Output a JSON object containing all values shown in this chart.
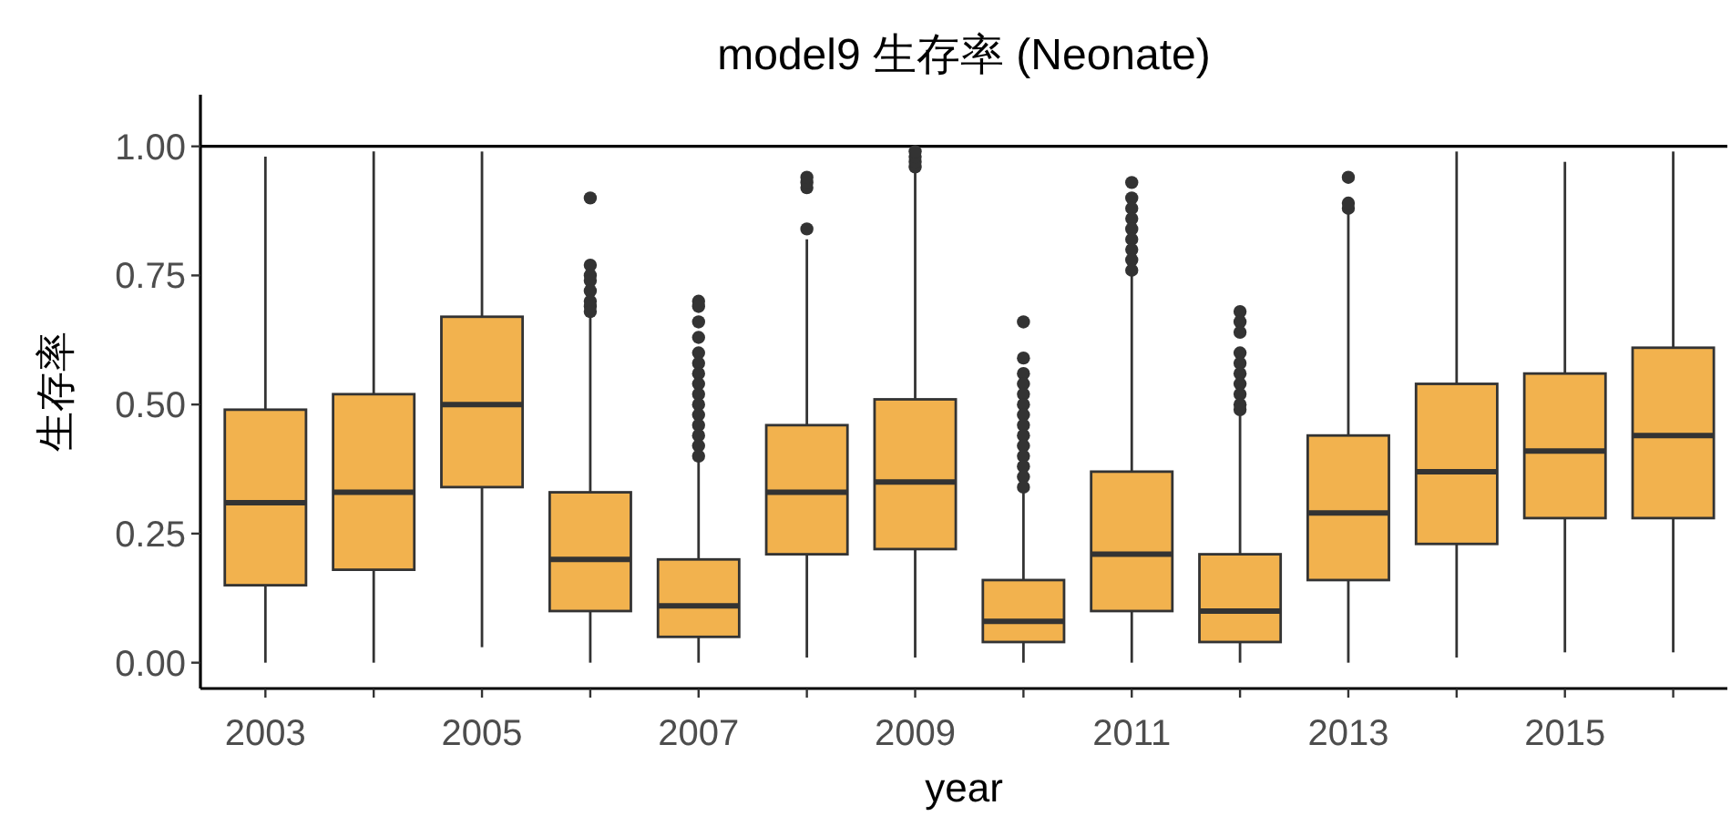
{
  "chart_data": {
    "type": "box",
    "title": "model9 生存率 (Neonate)",
    "xlabel": "year",
    "ylabel": "生存率",
    "categories": [
      "2003",
      null,
      "2005",
      null,
      "2007",
      null,
      "2009",
      null,
      "2011",
      null,
      "2013",
      null,
      "2015",
      null
    ],
    "color": "#f2b24e",
    "ylim": [
      -0.05,
      1.1
    ],
    "yticks": [
      {
        "value": 0,
        "label": "0.00"
      },
      {
        "value": 0.25,
        "label": "0.25"
      },
      {
        "value": 0.5,
        "label": "0.50"
      },
      {
        "value": 0.75,
        "label": "0.75"
      },
      {
        "value": 1,
        "label": "1.00"
      }
    ],
    "ref_lines": [
      {
        "axis": "y",
        "value": 1,
        "color": "#000000"
      }
    ],
    "boxes": [
      {
        "low": 0.0,
        "q1": 0.15,
        "median": 0.31,
        "q3": 0.49,
        "high": 0.98
      },
      {
        "low": 0.0,
        "q1": 0.18,
        "median": 0.33,
        "q3": 0.52,
        "high": 0.99
      },
      {
        "low": 0.03,
        "q1": 0.34,
        "median": 0.5,
        "q3": 0.67,
        "high": 0.99
      },
      {
        "low": 0.0,
        "q1": 0.1,
        "median": 0.2,
        "q3": 0.33,
        "high": 0.67,
        "outliers": [
          0.9,
          0.77,
          0.75,
          0.74,
          0.72,
          0.7,
          0.69,
          0.68
        ]
      },
      {
        "low": 0.0,
        "q1": 0.05,
        "median": 0.11,
        "q3": 0.2,
        "high": 0.4,
        "outliers": [
          0.7,
          0.69,
          0.66,
          0.63,
          0.6,
          0.58,
          0.56,
          0.54,
          0.52,
          0.5,
          0.48,
          0.46,
          0.44,
          0.42,
          0.4
        ]
      },
      {
        "low": 0.01,
        "q1": 0.21,
        "median": 0.33,
        "q3": 0.46,
        "high": 0.82,
        "outliers": [
          0.84,
          0.92,
          0.93,
          0.94
        ]
      },
      {
        "low": 0.01,
        "q1": 0.22,
        "median": 0.35,
        "q3": 0.51,
        "high": 0.95,
        "outliers": [
          0.96,
          0.97,
          0.98,
          0.99
        ]
      },
      {
        "low": 0.0,
        "q1": 0.04,
        "median": 0.08,
        "q3": 0.16,
        "high": 0.33,
        "outliers": [
          0.66,
          0.59,
          0.56,
          0.54,
          0.52,
          0.5,
          0.48,
          0.46,
          0.44,
          0.42,
          0.4,
          0.38,
          0.36,
          0.34
        ]
      },
      {
        "low": 0.0,
        "q1": 0.1,
        "median": 0.21,
        "q3": 0.37,
        "high": 0.75,
        "outliers": [
          0.93,
          0.9,
          0.88,
          0.86,
          0.84,
          0.82,
          0.8,
          0.78,
          0.76
        ]
      },
      {
        "low": 0.0,
        "q1": 0.04,
        "median": 0.1,
        "q3": 0.21,
        "high": 0.48,
        "outliers": [
          0.68,
          0.66,
          0.64,
          0.6,
          0.58,
          0.56,
          0.54,
          0.52,
          0.5,
          0.49
        ]
      },
      {
        "low": 0.0,
        "q1": 0.16,
        "median": 0.29,
        "q3": 0.44,
        "high": 0.87,
        "outliers": [
          0.88,
          0.89,
          0.94
        ]
      },
      {
        "low": 0.01,
        "q1": 0.23,
        "median": 0.37,
        "q3": 0.54,
        "high": 0.99
      },
      {
        "low": 0.02,
        "q1": 0.28,
        "median": 0.41,
        "q3": 0.56,
        "high": 0.97
      },
      {
        "low": 0.02,
        "q1": 0.28,
        "median": 0.44,
        "q3": 0.61,
        "high": 0.99
      }
    ]
  }
}
